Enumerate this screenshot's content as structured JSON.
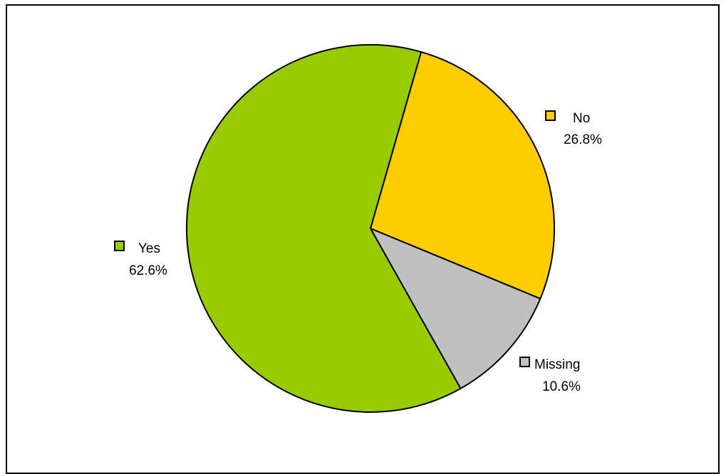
{
  "chart_data": {
    "type": "pie",
    "title": "",
    "legend": "inline-labels",
    "slices": [
      {
        "name": "No",
        "value": 26.8,
        "value_label": "26.8%",
        "color": "#FFCC00"
      },
      {
        "name": "Missing",
        "value": 10.6,
        "value_label": "10.6%",
        "color": "#C0C0C0"
      },
      {
        "name": "Yes",
        "value": 62.6,
        "value_label": "62.6%",
        "color": "#99CC00"
      }
    ]
  }
}
